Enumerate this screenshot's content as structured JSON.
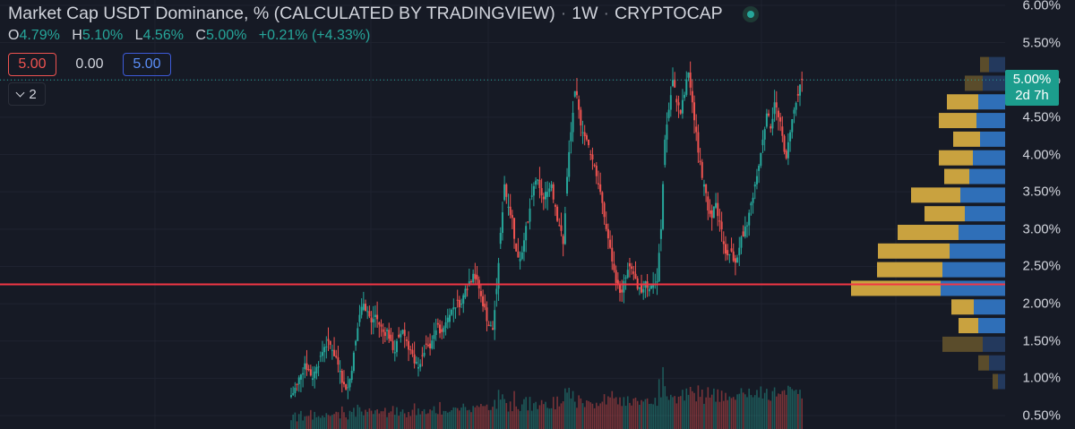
{
  "header": {
    "title": "Market Cap USDT Dominance, % (CALCULATED BY TRADINGVIEW)",
    "interval": "1W",
    "exchange": "CRYPTOCAP",
    "ohlc": {
      "o_key": "O",
      "o_val": "4.79%",
      "h_key": "H",
      "h_val": "5.10%",
      "l_key": "L",
      "l_val": "4.56%",
      "c_key": "C",
      "c_val": "5.00%",
      "change": "+0.21% (+4.33%)"
    }
  },
  "inputs": {
    "first": "5.00",
    "second": "0.00",
    "third": "5.00"
  },
  "collapsed_count": "2",
  "price_label": {
    "value": "5.00%",
    "countdown": "2d 7h"
  },
  "y_axis": {
    "ticks": [
      "6.00%",
      "5.50%",
      "5.00%",
      "4.50%",
      "4.00%",
      "3.50%",
      "3.00%",
      "2.50%",
      "2.00%",
      "1.50%",
      "1.00%",
      "0.50%"
    ]
  },
  "colors": {
    "up": "#26a69a",
    "down": "#ef5350",
    "hline": "#f23645",
    "vp_up": "#2f6fb8",
    "vp_down": "#c9a23f",
    "vp_up_dim": "#23395d",
    "vp_down_dim": "#5a4c2b"
  },
  "chart_data": {
    "type": "candlestick",
    "ylim": [
      0.5,
      6.0
    ],
    "current_price": 5.0,
    "horizontal_line": 2.26,
    "close_series": [
      0.8,
      0.92,
      1.05,
      1.2,
      1.12,
      1.0,
      1.15,
      1.3,
      1.42,
      1.5,
      1.38,
      1.28,
      1.1,
      0.92,
      0.88,
      1.1,
      1.5,
      1.85,
      2.0,
      1.9,
      1.75,
      1.85,
      1.72,
      1.62,
      1.65,
      1.5,
      1.35,
      1.55,
      1.65,
      1.5,
      1.38,
      1.2,
      1.15,
      1.3,
      1.45,
      1.4,
      1.58,
      1.72,
      1.62,
      1.75,
      1.85,
      1.95,
      2.05,
      2.0,
      2.2,
      2.3,
      2.4,
      2.32,
      2.1,
      1.95,
      1.7,
      1.65,
      2.2,
      2.95,
      3.6,
      3.3,
      3.15,
      2.7,
      2.6,
      2.85,
      3.1,
      3.45,
      3.65,
      3.55,
      3.4,
      3.5,
      3.6,
      3.3,
      3.05,
      2.8,
      3.7,
      4.3,
      4.85,
      4.6,
      4.3,
      4.2,
      4.0,
      3.85,
      3.6,
      3.35,
      3.0,
      2.75,
      2.45,
      2.25,
      2.15,
      2.35,
      2.5,
      2.4,
      2.2,
      2.15,
      2.3,
      2.2,
      2.25,
      2.3,
      3.0,
      4.2,
      4.6,
      5.0,
      4.7,
      4.55,
      4.8,
      5.1,
      4.7,
      4.3,
      3.9,
      3.6,
      3.25,
      3.15,
      3.35,
      3.1,
      2.8,
      2.65,
      2.7,
      2.55,
      2.75,
      2.9,
      3.05,
      3.35,
      3.6,
      3.85,
      4.2,
      4.55,
      4.35,
      4.7,
      4.5,
      4.25,
      3.95,
      4.3,
      4.6,
      4.79,
      5.0
    ],
    "volume_profile": [
      {
        "price": 5.2,
        "up": 18,
        "down": 10
      },
      {
        "price": 4.95,
        "up": 25,
        "down": 20
      },
      {
        "price": 4.7,
        "up": 30,
        "down": 35
      },
      {
        "price": 4.45,
        "up": 32,
        "down": 42
      },
      {
        "price": 4.2,
        "up": 28,
        "down": 30
      },
      {
        "price": 3.95,
        "up": 36,
        "down": 38
      },
      {
        "price": 3.7,
        "up": 40,
        "down": 28
      },
      {
        "price": 3.45,
        "up": 50,
        "down": 55
      },
      {
        "price": 3.2,
        "up": 45,
        "down": 45
      },
      {
        "price": 2.95,
        "up": 52,
        "down": 68
      },
      {
        "price": 2.7,
        "up": 62,
        "down": 80
      },
      {
        "price": 2.45,
        "up": 70,
        "down": 73
      },
      {
        "price": 2.2,
        "up": 72,
        "down": 100
      },
      {
        "price": 1.95,
        "up": 35,
        "down": 25
      },
      {
        "price": 1.7,
        "up": 30,
        "down": 22
      },
      {
        "price": 1.45,
        "up": 25,
        "down": 45
      },
      {
        "price": 1.2,
        "up": 18,
        "down": 12
      },
      {
        "price": 0.95,
        "up": 8,
        "down": 6
      }
    ]
  }
}
